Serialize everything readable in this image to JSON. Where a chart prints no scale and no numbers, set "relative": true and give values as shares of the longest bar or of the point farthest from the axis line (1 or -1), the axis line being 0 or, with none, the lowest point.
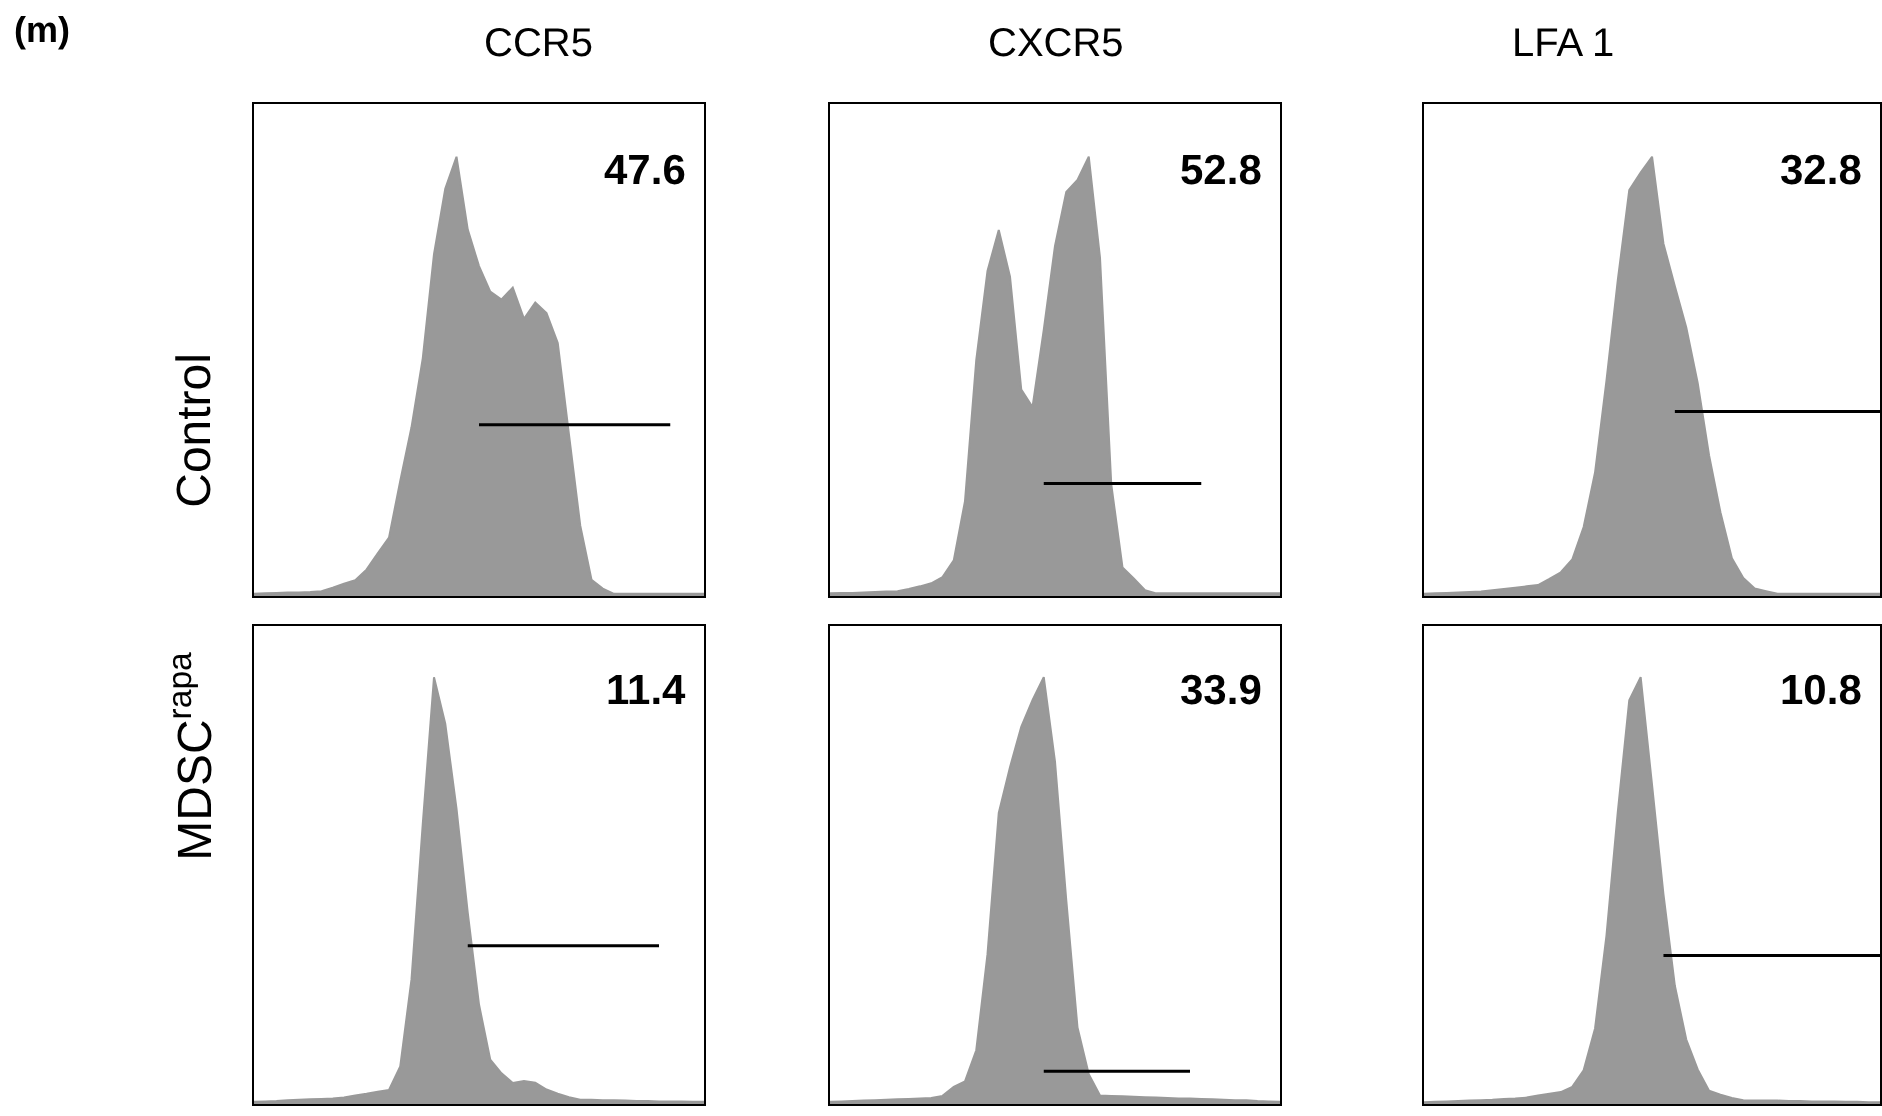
{
  "chart_data": [
    {
      "type": "area",
      "relative": true,
      "title": "CCR5",
      "ylabel": "Control",
      "annotations": [
        "(m)",
        "47.6"
      ],
      "categories": [
        null,
        null,
        null,
        null,
        null,
        null,
        null,
        null,
        null,
        null,
        null,
        null,
        null,
        null,
        null,
        null,
        null,
        null,
        null,
        null,
        null,
        null,
        null,
        null,
        null,
        null,
        null,
        null,
        null,
        null,
        null,
        null,
        null,
        null,
        null,
        null,
        null,
        null,
        null,
        null,
        null
      ],
      "series": [
        {
          "color": "#999999",
          "values": [
            0.005,
            0.006,
            0.007,
            0.008,
            0.008,
            0.009,
            0.011,
            0.019,
            0.028,
            0.036,
            0.06,
            0.097,
            0.133,
            0.262,
            0.384,
            0.541,
            0.778,
            0.927,
            1,
            0.834,
            0.751,
            0.693,
            0.675,
            0.702,
            0.631,
            0.668,
            0.644,
            0.576,
            0.367,
            0.16,
            0.037,
            0.017,
            0.005,
            0.005,
            0.005,
            0.005,
            0.005,
            0.005,
            0.005,
            0.005,
            0.005
          ]
        },
        {
          "type": "line",
          "color": "#000000",
          "values": [
            null,
            null,
            null,
            null,
            null,
            null,
            null,
            null,
            null,
            null,
            null,
            null,
            null,
            null,
            null,
            null,
            null,
            null,
            null,
            null,
            0.39,
            null,
            null,
            null,
            null,
            null,
            null,
            null,
            null,
            null,
            null,
            null,
            null,
            null,
            null,
            null,
            null,
            0.39,
            null,
            null,
            null
          ]
        }
      ]
    },
    {
      "type": "area",
      "relative": true,
      "title": "CXCR5",
      "annotations": [
        "52.8"
      ],
      "categories": [
        null,
        null,
        null,
        null,
        null,
        null,
        null,
        null,
        null,
        null,
        null,
        null,
        null,
        null,
        null,
        null,
        null,
        null,
        null,
        null,
        null,
        null,
        null,
        null,
        null,
        null,
        null,
        null,
        null,
        null,
        null,
        null,
        null,
        null,
        null,
        null,
        null,
        null,
        null,
        null,
        null
      ],
      "series": [
        {
          "color": "#999999",
          "values": [
            0.006,
            0.007,
            0.007,
            0.008,
            0.009,
            0.01,
            0.011,
            0.016,
            0.022,
            0.029,
            0.043,
            0.081,
            0.216,
            0.537,
            0.74,
            0.833,
            0.727,
            0.47,
            0.43,
            0.606,
            0.797,
            0.92,
            0.947,
            1,
            0.77,
            0.254,
            0.065,
            0.04,
            0.013,
            0.006,
            0.006,
            0.006,
            0.006,
            0.006,
            0.006,
            0.006,
            0.006,
            0.006,
            0.006,
            0.006,
            0.006
          ]
        },
        {
          "type": "line",
          "color": "#000000",
          "values": [
            null,
            null,
            null,
            null,
            null,
            null,
            null,
            null,
            null,
            null,
            null,
            null,
            null,
            null,
            null,
            null,
            null,
            null,
            null,
            0.256,
            null,
            null,
            null,
            null,
            null,
            null,
            null,
            null,
            null,
            null,
            null,
            null,
            null,
            0.256,
            null,
            null,
            null,
            null,
            null,
            null,
            null
          ]
        }
      ]
    },
    {
      "type": "area",
      "relative": true,
      "title": "LFA 1",
      "annotations": [
        "32.8"
      ],
      "categories": [
        null,
        null,
        null,
        null,
        null,
        null,
        null,
        null,
        null,
        null,
        null,
        null,
        null,
        null,
        null,
        null,
        null,
        null,
        null,
        null,
        null,
        null,
        null,
        null,
        null,
        null,
        null,
        null,
        null,
        null,
        null,
        null,
        null,
        null,
        null,
        null,
        null,
        null,
        null,
        null,
        null
      ],
      "series": [
        {
          "color": "#999999",
          "values": [
            0.005,
            0.006,
            0.007,
            0.008,
            0.009,
            0.01,
            0.013,
            0.016,
            0.019,
            0.022,
            0.025,
            0.039,
            0.054,
            0.083,
            0.157,
            0.281,
            0.49,
            0.72,
            0.924,
            0.964,
            1,
            0.802,
            0.705,
            0.611,
            0.485,
            0.32,
            0.19,
            0.086,
            0.041,
            0.017,
            0.011,
            0.005,
            0.005,
            0.005,
            0.005,
            0.005,
            0.005,
            0.005,
            0.005,
            0.005,
            0.005
          ]
        },
        {
          "type": "line",
          "color": "#000000",
          "values": [
            null,
            null,
            null,
            null,
            null,
            null,
            null,
            null,
            null,
            null,
            null,
            null,
            null,
            null,
            null,
            null,
            null,
            null,
            null,
            null,
            null,
            null,
            0.42,
            null,
            null,
            null,
            null,
            null,
            null,
            null,
            null,
            null,
            null,
            null,
            null,
            null,
            null,
            null,
            null,
            null,
            0.42
          ]
        }
      ]
    },
    {
      "type": "area",
      "relative": true,
      "ylabel": "MDSC$^{rapa}$",
      "annotations": [
        "11.4"
      ],
      "categories": [
        null,
        null,
        null,
        null,
        null,
        null,
        null,
        null,
        null,
        null,
        null,
        null,
        null,
        null,
        null,
        null,
        null,
        null,
        null,
        null,
        null,
        null,
        null,
        null,
        null,
        null,
        null,
        null,
        null,
        null,
        null,
        null,
        null,
        null,
        null,
        null,
        null,
        null,
        null,
        null,
        null
      ],
      "series": [
        {
          "color": "#999999",
          "values": [
            0.005,
            0.006,
            0.007,
            0.009,
            0.01,
            0.011,
            0.012,
            0.013,
            0.015,
            0.02,
            0.024,
            0.029,
            0.033,
            0.088,
            0.292,
            0.656,
            1,
            0.891,
            0.692,
            0.448,
            0.233,
            0.104,
            0.072,
            0.049,
            0.054,
            0.05,
            0.034,
            0.024,
            0.016,
            0.01,
            0.01,
            0.009,
            0.009,
            0.008,
            0.007,
            0.007,
            0.006,
            0.006,
            0.006,
            0.005,
            0.005
          ]
        },
        {
          "type": "line",
          "color": "#000000",
          "values": [
            null,
            null,
            null,
            null,
            null,
            null,
            null,
            null,
            null,
            null,
            null,
            null,
            null,
            null,
            null,
            null,
            null,
            null,
            null,
            0.371,
            null,
            null,
            null,
            null,
            null,
            null,
            null,
            null,
            null,
            null,
            null,
            null,
            null,
            null,
            null,
            null,
            0.371,
            null,
            null,
            null,
            null
          ]
        }
      ]
    },
    {
      "type": "area",
      "relative": true,
      "annotations": [
        "33.9"
      ],
      "categories": [
        null,
        null,
        null,
        null,
        null,
        null,
        null,
        null,
        null,
        null,
        null,
        null,
        null,
        null,
        null,
        null,
        null,
        null,
        null,
        null,
        null,
        null,
        null,
        null,
        null,
        null,
        null,
        null,
        null,
        null,
        null,
        null,
        null,
        null,
        null,
        null,
        null,
        null,
        null,
        null,
        null
      ],
      "series": [
        {
          "color": "#999999",
          "values": [
            0.005,
            0.006,
            0.007,
            0.008,
            0.009,
            0.01,
            0.011,
            0.012,
            0.013,
            0.014,
            0.019,
            0.04,
            0.053,
            0.126,
            0.351,
            0.682,
            0.789,
            0.884,
            0.946,
            1,
            0.802,
            0.478,
            0.179,
            0.07,
            0.02,
            0.019,
            0.018,
            0.017,
            0.016,
            0.015,
            0.014,
            0.013,
            0.013,
            0.012,
            0.011,
            0.01,
            0.009,
            0.009,
            0.007,
            0.006,
            0.005
          ]
        },
        {
          "type": "line",
          "color": "#000000",
          "values": [
            null,
            null,
            null,
            null,
            null,
            null,
            null,
            null,
            null,
            null,
            null,
            null,
            null,
            null,
            null,
            null,
            null,
            null,
            null,
            0.077,
            null,
            null,
            null,
            null,
            null,
            null,
            null,
            null,
            null,
            null,
            null,
            null,
            0.077,
            null,
            null,
            null,
            null,
            null,
            null,
            null,
            null
          ]
        }
      ]
    },
    {
      "type": "area",
      "relative": true,
      "annotations": [
        "10.8"
      ],
      "categories": [
        null,
        null,
        null,
        null,
        null,
        null,
        null,
        null,
        null,
        null,
        null,
        null,
        null,
        null,
        null,
        null,
        null,
        null,
        null,
        null,
        null,
        null,
        null,
        null,
        null,
        null,
        null,
        null,
        null,
        null,
        null,
        null,
        null,
        null,
        null,
        null,
        null,
        null,
        null,
        null,
        null
      ],
      "series": [
        {
          "color": "#999999",
          "values": [
            0.004,
            0.005,
            0.006,
            0.007,
            0.008,
            0.009,
            0.01,
            0.012,
            0.013,
            0.015,
            0.02,
            0.024,
            0.028,
            0.04,
            0.079,
            0.177,
            0.394,
            0.686,
            0.946,
            1,
            0.747,
            0.491,
            0.277,
            0.151,
            0.081,
            0.031,
            0.022,
            0.014,
            0.009,
            0.008,
            0.008,
            0.008,
            0.007,
            0.007,
            0.006,
            0.006,
            0.006,
            0.005,
            0.005,
            0.004,
            0.004
          ]
        },
        {
          "type": "line",
          "color": "#000000",
          "values": [
            null,
            null,
            null,
            null,
            null,
            null,
            null,
            null,
            null,
            null,
            null,
            null,
            null,
            null,
            null,
            null,
            null,
            null,
            null,
            null,
            null,
            0.348,
            null,
            null,
            null,
            null,
            null,
            null,
            null,
            null,
            null,
            null,
            null,
            null,
            null,
            null,
            null,
            null,
            null,
            null,
            0.348
          ]
        }
      ]
    }
  ]
}
